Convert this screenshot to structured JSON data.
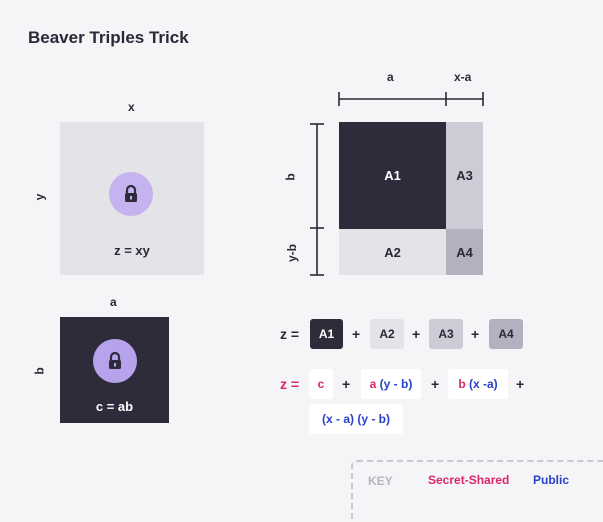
{
  "title": "Beaver Triples Trick",
  "left_top": {
    "x_label": "x",
    "y_label": "y",
    "text": "z = xy"
  },
  "left_bottom": {
    "a_label": "a",
    "b_label": "b",
    "text": "c = ab"
  },
  "grid": {
    "top_labels": [
      "a",
      "x-a"
    ],
    "side_labels": [
      "b",
      "y-b"
    ],
    "cells": [
      "A1",
      "A3",
      "A2",
      "A4"
    ]
  },
  "equation1": {
    "lead": "z =",
    "terms": [
      "A1",
      "A2",
      "A3",
      "A4"
    ],
    "op": "+"
  },
  "equation2": {
    "lead": "z =",
    "terms": [
      "c",
      "a (y - b)",
      "b (x -a)",
      "(x - a) (y - b)"
    ],
    "op": "+"
  },
  "key": {
    "label": "KEY",
    "secret": "Secret-Shared",
    "public": "Public"
  },
  "icons": [
    "lock-icon",
    "lock-icon"
  ],
  "colors": {
    "secret": "#d9276a",
    "public": "#2742c8",
    "dark": "#2e2b3b",
    "lock": "#c4b3ef"
  }
}
